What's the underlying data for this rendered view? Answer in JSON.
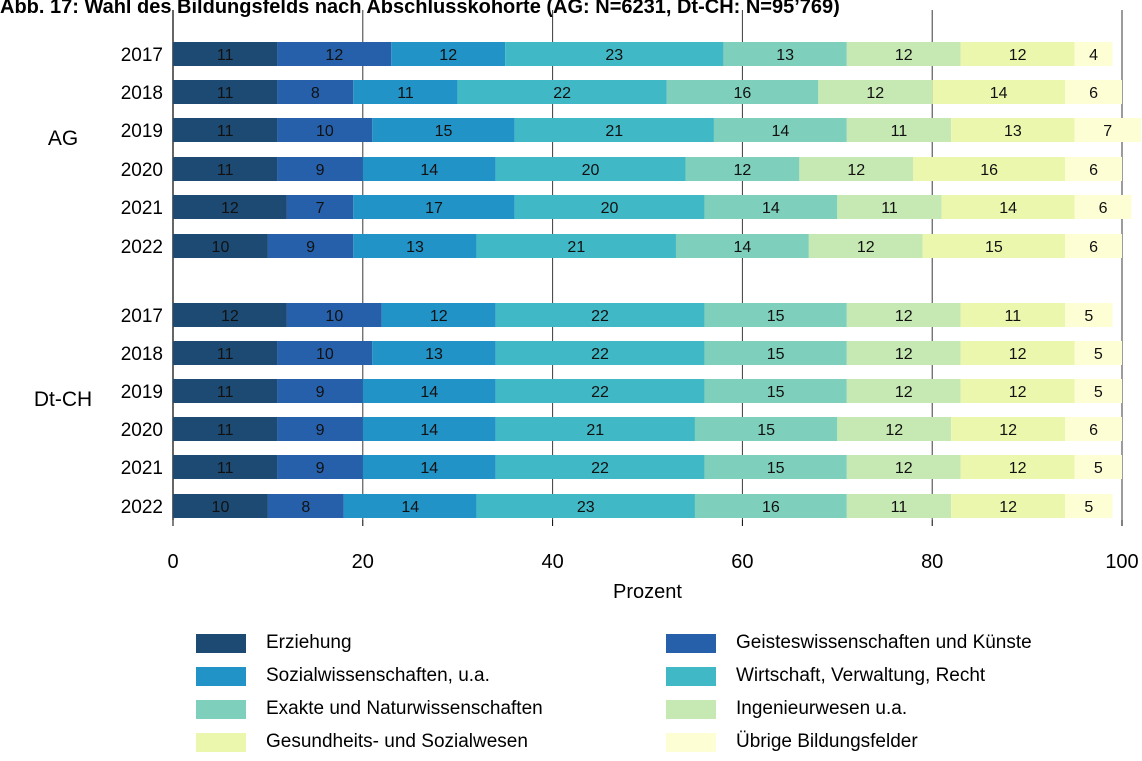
{
  "chart_data": {
    "type": "bar",
    "orientation": "horizontal",
    "stacked": true,
    "title": "Abb. 17: Wahl des Bildungsfelds nach Abschlusskohorte (AG: N=6231, Dt-CH: N=95’769)",
    "xlabel": "Prozent",
    "xlim": [
      0,
      100
    ],
    "xticks": [
      "0",
      "20",
      "40",
      "60",
      "80",
      "100"
    ],
    "grid": "vertical",
    "legend_position": "bottom",
    "groups": [
      {
        "label": "AG",
        "years": [
          "2017",
          "2018",
          "2019",
          "2020",
          "2021",
          "2022"
        ]
      },
      {
        "label": "Dt-CH",
        "years": [
          "2017",
          "2018",
          "2019",
          "2020",
          "2021",
          "2022"
        ]
      }
    ],
    "series": [
      {
        "name": "Erziehung",
        "color": "#1d4a73",
        "values": [
          11,
          11,
          11,
          11,
          12,
          10,
          12,
          11,
          11,
          11,
          11,
          10
        ]
      },
      {
        "name": "Geisteswissenschaften und Künste",
        "color": "#2660ab",
        "values": [
          12,
          8,
          10,
          9,
          7,
          9,
          10,
          10,
          9,
          9,
          9,
          8
        ]
      },
      {
        "name": "Sozialwissenschaften, u.a.",
        "color": "#2293c7",
        "values": [
          12,
          11,
          15,
          14,
          17,
          13,
          12,
          13,
          14,
          14,
          14,
          14
        ]
      },
      {
        "name": "Wirtschaft, Verwaltung, Recht",
        "color": "#41b8c5",
        "values": [
          23,
          22,
          21,
          20,
          20,
          21,
          22,
          22,
          22,
          21,
          22,
          23
        ]
      },
      {
        "name": "Exakte und Naturwissenschaften",
        "color": "#7ecfbb",
        "values": [
          13,
          16,
          14,
          12,
          14,
          14,
          15,
          15,
          15,
          15,
          15,
          16
        ]
      },
      {
        "name": "Ingenieurwesen u.a.",
        "color": "#c6e8b2",
        "values": [
          12,
          12,
          11,
          12,
          11,
          12,
          12,
          12,
          12,
          12,
          12,
          11
        ]
      },
      {
        "name": "Gesundheits- und Sozialwesen",
        "color": "#ecf7ae",
        "values": [
          12,
          14,
          13,
          16,
          14,
          15,
          11,
          12,
          12,
          12,
          12,
          12
        ]
      },
      {
        "name": "Übrige Bildungsfelder",
        "color": "#fefed5",
        "values": [
          4,
          6,
          7,
          6,
          6,
          6,
          5,
          5,
          5,
          6,
          5,
          5
        ]
      }
    ]
  }
}
